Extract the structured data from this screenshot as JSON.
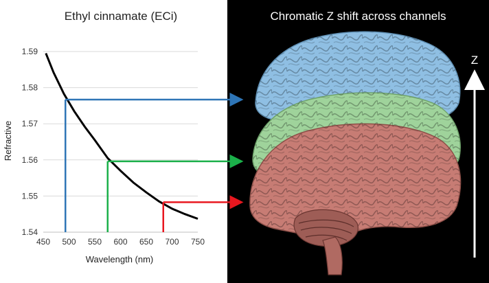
{
  "left_panel": {
    "title": "Ethyl cinnamate (ECi)"
  },
  "right_panel": {
    "title": "Chromatic Z shift across channels",
    "z_axis_label": "Z"
  },
  "chart_data": {
    "type": "line",
    "title": "Ethyl cinnamate (ECi)",
    "xlabel": "Wavelength (nm)",
    "ylabel": "Refractive",
    "xlim": [
      450,
      750
    ],
    "ylim": [
      1.54,
      1.59
    ],
    "x_ticks": [
      "450",
      "500",
      "550",
      "600",
      "650",
      "700",
      "750"
    ],
    "y_ticks": [
      "1.54",
      "1.55",
      "1.56",
      "1.57",
      "1.58",
      "1.59"
    ],
    "grid": true,
    "series": [
      {
        "x": [
          455,
          470,
          490,
          510,
          530,
          550,
          575,
          600,
          625,
          650,
          675,
          700,
          725,
          750
        ],
        "y": [
          1.5895,
          1.5842,
          1.5783,
          1.5735,
          1.5693,
          1.5655,
          1.5605,
          1.557,
          1.5537,
          1.551,
          1.5485,
          1.5465,
          1.545,
          1.5437
        ]
      }
    ],
    "markers": [
      {
        "channel": "blue",
        "x": 493,
        "y": 1.5767,
        "color": "#2e75b6"
      },
      {
        "channel": "green",
        "x": 575,
        "y": 1.5596,
        "color": "#1bb04a"
      },
      {
        "channel": "red",
        "x": 683,
        "y": 1.5483,
        "color": "#e8171f"
      }
    ]
  },
  "brain_layers": [
    {
      "channel": "blue",
      "color": "#8fbfe3"
    },
    {
      "channel": "green",
      "color": "#9fd39b"
    },
    {
      "channel": "red",
      "color": "#c77c74"
    }
  ]
}
